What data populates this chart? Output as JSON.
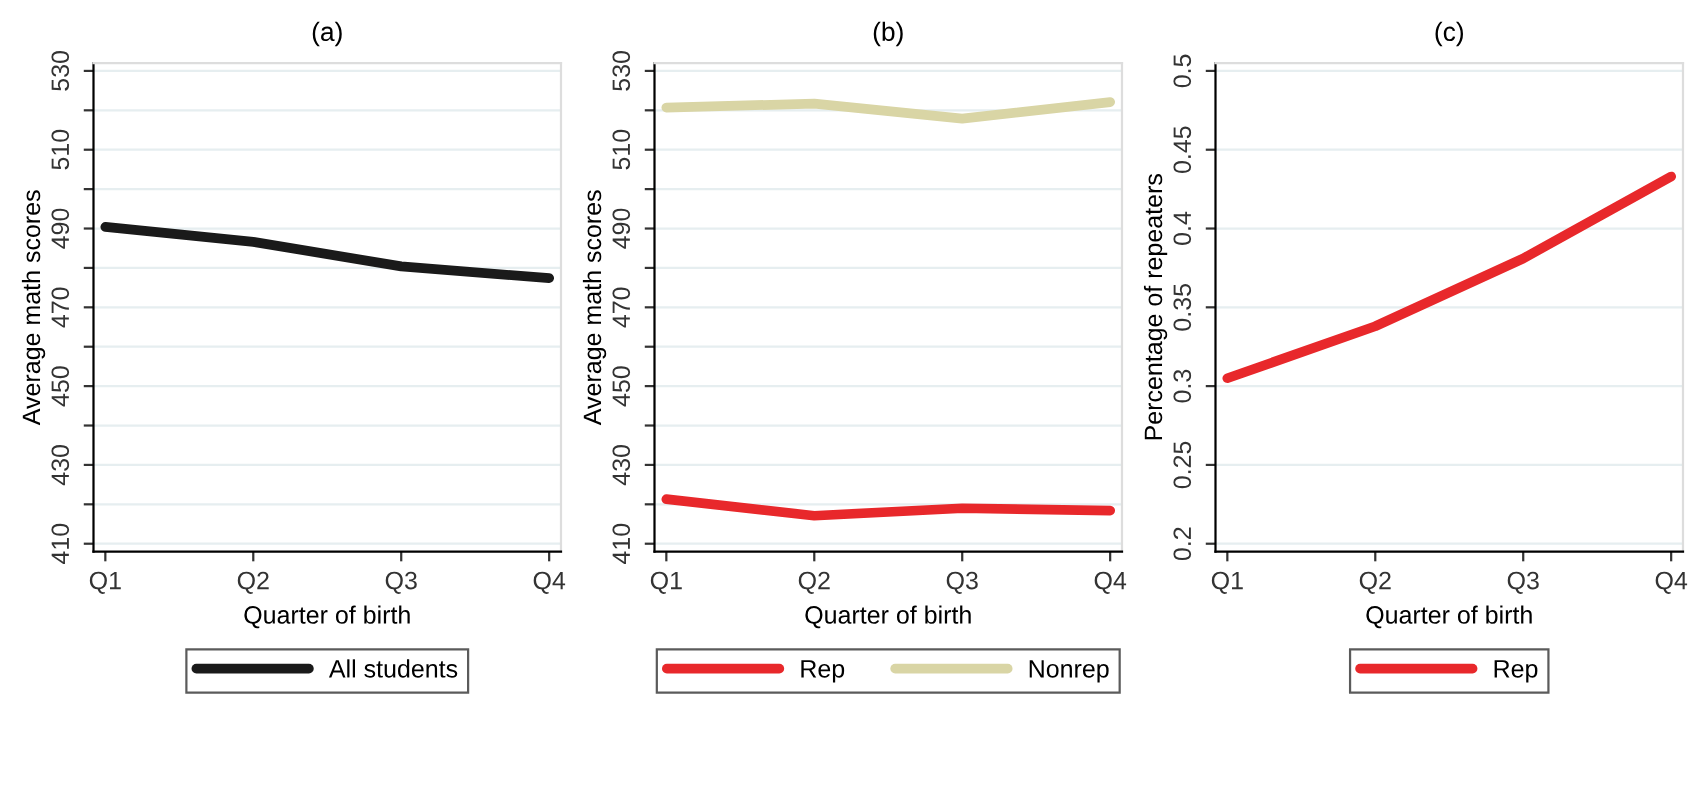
{
  "chart_data": [
    {
      "type": "line",
      "title": "(a)",
      "xlabel": "Quarter of birth",
      "ylabel": "Average math scores",
      "categories": [
        "Q1",
        "Q2",
        "Q3",
        "Q4"
      ],
      "series": [
        {
          "name": "All students",
          "color": "#1a1a1a",
          "values": [
            490.4,
            486.6,
            480.4,
            477.4
          ]
        }
      ],
      "ylim": [
        408,
        532
      ],
      "yticks": [
        410,
        {
          "value": 420,
          "label": null
        },
        430,
        {
          "value": 440,
          "label": null
        },
        450,
        {
          "value": 460,
          "label": null
        },
        470,
        {
          "value": 480,
          "label": null
        },
        490,
        {
          "value": 500,
          "label": null
        },
        510,
        {
          "value": 520,
          "label": null
        },
        530
      ],
      "grid": "y",
      "legend": "bottom"
    },
    {
      "type": "line",
      "title": "(b)",
      "xlabel": "Quarter of birth",
      "ylabel": "Average math scores",
      "categories": [
        "Q1",
        "Q2",
        "Q3",
        "Q4"
      ],
      "series": [
        {
          "name": "Rep",
          "color": "#e8282b",
          "values": [
            421.3,
            417.1,
            419.0,
            418.4
          ]
        },
        {
          "name": "Nonrep",
          "color": "#d9d5a5",
          "values": [
            520.7,
            521.7,
            517.9,
            522.1
          ]
        }
      ],
      "ylim": [
        408,
        532
      ],
      "yticks": [
        410,
        {
          "value": 420,
          "label": null
        },
        430,
        {
          "value": 440,
          "label": null
        },
        450,
        {
          "value": 460,
          "label": null
        },
        470,
        {
          "value": 480,
          "label": null
        },
        490,
        {
          "value": 500,
          "label": null
        },
        510,
        {
          "value": 520,
          "label": null
        },
        530
      ],
      "grid": "y",
      "legend": "bottom"
    },
    {
      "type": "line",
      "title": "(c)",
      "xlabel": "Quarter of birth",
      "ylabel": "Percentage of repeaters",
      "categories": [
        "Q1",
        "Q2",
        "Q3",
        "Q4"
      ],
      "series": [
        {
          "name": "Rep",
          "color": "#e8282b",
          "values": [
            0.305,
            0.338,
            0.381,
            0.433
          ]
        }
      ],
      "ylim": [
        0.195,
        0.505
      ],
      "yticks": [
        0.2,
        0.25,
        0.3,
        0.35,
        0.4,
        0.45,
        0.5
      ],
      "grid": "y",
      "legend": "bottom"
    }
  ]
}
